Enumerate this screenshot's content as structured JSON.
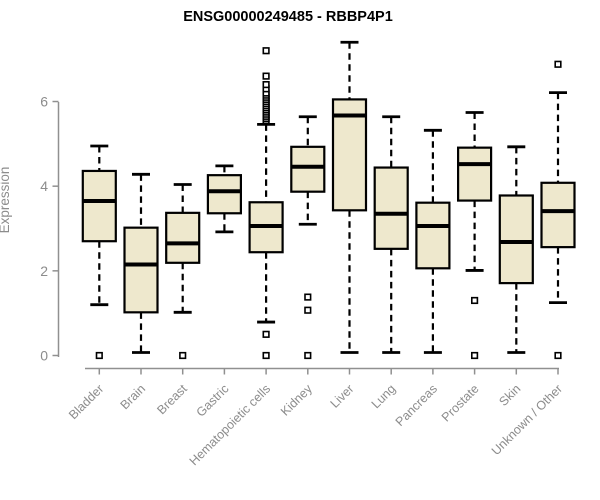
{
  "chart_data": {
    "type": "boxplot",
    "title": "ENSG00000249485 - RBBP4P1",
    "ylabel": "Expression",
    "xlabel": "",
    "ylim": [
      0,
      7.5
    ],
    "yticks": [
      0,
      2,
      4,
      6
    ],
    "grid": false,
    "legend": false,
    "categories": [
      "Bladder",
      "Brain",
      "Breast",
      "Gastric",
      "Hematopoietic cells",
      "Kidney",
      "Liver",
      "Lung",
      "Pancreas",
      "Prostate",
      "Skin",
      "Unknown / Other"
    ],
    "series": [
      {
        "category": "Bladder",
        "whisker_low": 1.2,
        "q1": 2.7,
        "median": 3.65,
        "q3": 4.36,
        "whisker_high": 4.95,
        "outliers": [
          0
        ]
      },
      {
        "category": "Brain",
        "whisker_low": 0.07,
        "q1": 1.02,
        "median": 2.15,
        "q3": 3.02,
        "whisker_high": 4.28,
        "outliers": []
      },
      {
        "category": "Breast",
        "whisker_low": 1.02,
        "q1": 2.19,
        "median": 2.65,
        "q3": 3.37,
        "whisker_high": 4.04,
        "outliers": [
          0
        ]
      },
      {
        "category": "Gastric",
        "whisker_low": 2.92,
        "q1": 3.36,
        "median": 3.88,
        "q3": 4.26,
        "whisker_high": 4.48,
        "outliers": []
      },
      {
        "category": "Hematopoietic cells",
        "whisker_low": 0.79,
        "q1": 2.44,
        "median": 3.06,
        "q3": 3.62,
        "whisker_high": 5.46,
        "outliers": [
          0,
          0.5,
          5.55,
          5.6,
          5.65,
          5.7,
          5.75,
          5.8,
          5.85,
          5.9,
          5.95,
          6.0,
          6.05,
          6.1,
          6.15,
          6.2,
          6.3,
          6.4,
          6.6,
          7.2
        ]
      },
      {
        "category": "Kidney",
        "whisker_low": 3.1,
        "q1": 3.87,
        "median": 4.46,
        "q3": 4.93,
        "whisker_high": 5.64,
        "outliers": [
          0,
          1.07,
          1.38
        ]
      },
      {
        "category": "Liver",
        "whisker_low": 0.07,
        "q1": 3.43,
        "median": 5.67,
        "q3": 6.05,
        "whisker_high": 7.4,
        "outliers": []
      },
      {
        "category": "Lung",
        "whisker_low": 0.07,
        "q1": 2.52,
        "median": 3.35,
        "q3": 4.44,
        "whisker_high": 5.64,
        "outliers": []
      },
      {
        "category": "Pancreas",
        "whisker_low": 0.07,
        "q1": 2.06,
        "median": 3.06,
        "q3": 3.61,
        "whisker_high": 5.32,
        "outliers": []
      },
      {
        "category": "Prostate",
        "whisker_low": 2.01,
        "q1": 3.66,
        "median": 4.52,
        "q3": 4.91,
        "whisker_high": 5.74,
        "outliers": [
          0,
          1.3
        ]
      },
      {
        "category": "Skin",
        "whisker_low": 0.07,
        "q1": 1.71,
        "median": 2.68,
        "q3": 3.78,
        "whisker_high": 4.93,
        "outliers": []
      },
      {
        "category": "Unknown / Other",
        "whisker_low": 1.25,
        "q1": 2.56,
        "median": 3.41,
        "q3": 4.08,
        "whisker_high": 6.21,
        "outliers": [
          0,
          6.88
        ]
      }
    ],
    "colors": {
      "box_fill": "#EEE8CD",
      "box_stroke": "#000000",
      "median": "#000000",
      "whisker": "#000000",
      "outlier_stroke": "#000000",
      "outlier_fill": "#FFFFFF",
      "axis": "#909090",
      "tick_text": "#8C8C8C",
      "title": "#000000",
      "background": "#FFFFFF"
    }
  }
}
